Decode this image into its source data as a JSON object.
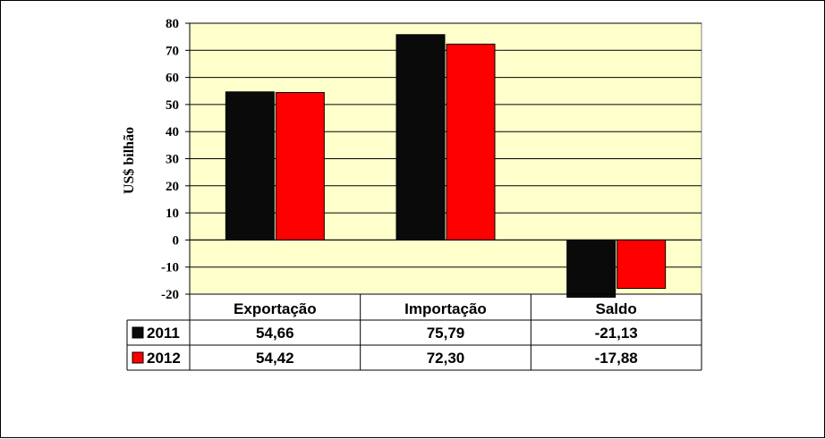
{
  "chart_data": {
    "type": "bar",
    "ylabel": "US$ bilhão",
    "ylim": [
      -20,
      80
    ],
    "yticks": [
      80,
      70,
      60,
      50,
      40,
      30,
      20,
      10,
      0,
      -10,
      -20
    ],
    "grid": true,
    "plot_background": "#FFFFCC",
    "categories": [
      "Exportação",
      "Importação",
      "Saldo"
    ],
    "series": [
      {
        "name": "2011",
        "color": "#0A0A0A",
        "values": [
          54.66,
          75.79,
          -21.13
        ],
        "labels": [
          "54,66",
          "75,79",
          "-21,13"
        ]
      },
      {
        "name": "2012",
        "color": "#FF0000",
        "values": [
          54.42,
          72.3,
          -17.88
        ],
        "labels": [
          "54,42",
          "72,30",
          "-17,88"
        ]
      }
    ]
  }
}
